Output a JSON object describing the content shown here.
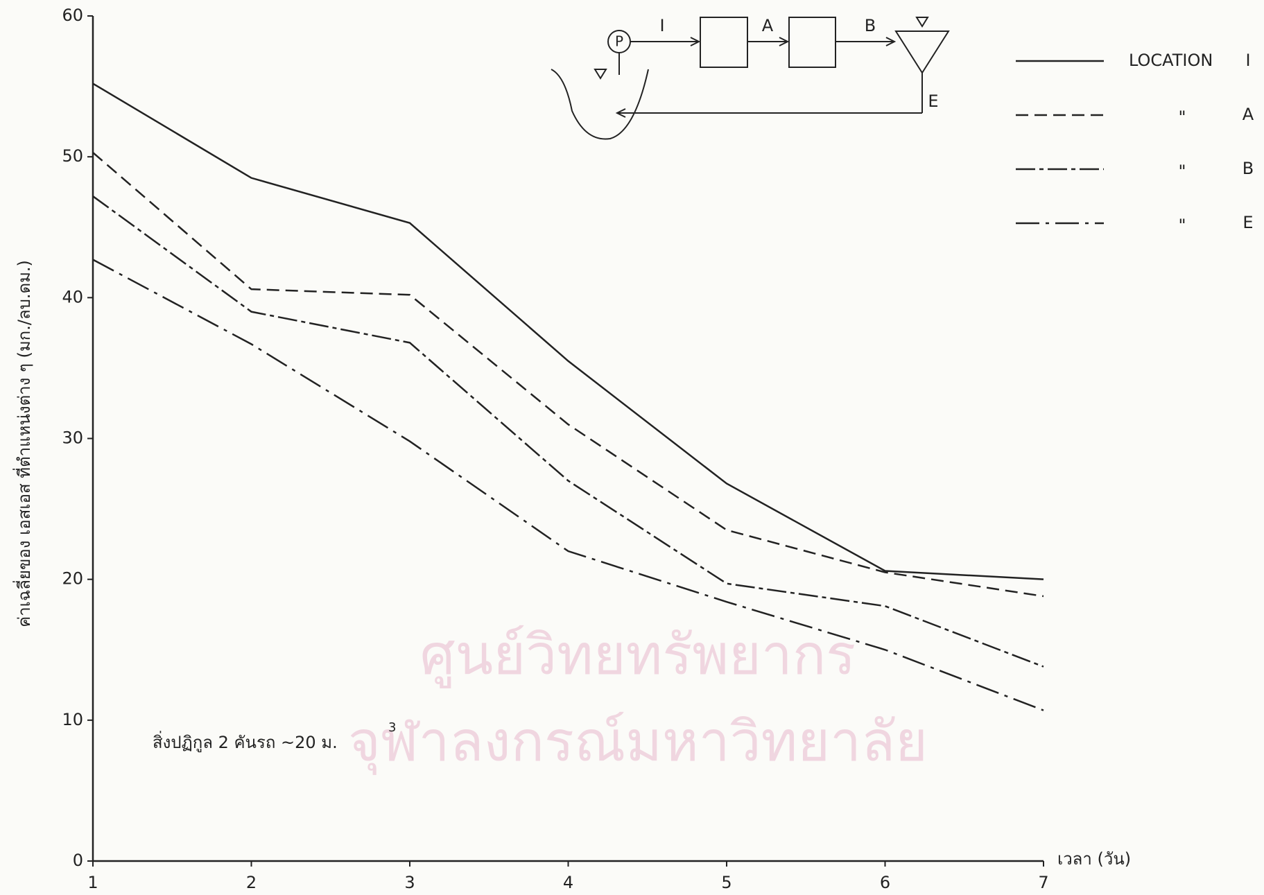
{
  "chart_data": {
    "type": "line",
    "y_label": "ค่าเฉลี่ยของ เอสเอส ที่ตำแหน่งต่าง ๆ (มก./ลบ.ดม.)",
    "x_label": "เวลา (วัน)",
    "annotation": "สิ่งปฏิกูล 2 คันรถ ~20 ม.",
    "annotation_superscript": "3",
    "legend_prefix": "LOCATION",
    "ditto_mark": "\"",
    "diagram_labels": {
      "pump": "P",
      "inflow": "I",
      "a": "A",
      "b": "B",
      "e": "E"
    },
    "watermark": [
      "ศูนย์วิทยทรัพยากร",
      "จุฬาลงกรณ์มหาวิทยาลัย"
    ],
    "x": [
      1,
      2,
      3,
      4,
      5,
      6,
      7
    ],
    "xlim": [
      1,
      7
    ],
    "xticks": [
      1,
      2,
      3,
      4,
      5,
      6,
      7
    ],
    "ylim": [
      0,
      60
    ],
    "yticks": [
      0,
      10,
      20,
      30,
      40,
      50,
      60
    ],
    "series": [
      {
        "name": "I",
        "color": "#222222",
        "dash": "none",
        "values": [
          55.2,
          48.5,
          45.3,
          35.5,
          26.8,
          20.6,
          20.0
        ]
      },
      {
        "name": "A",
        "color": "#222222",
        "dash": "18 9",
        "values": [
          50.3,
          40.6,
          40.2,
          31.0,
          23.5,
          20.5,
          18.8
        ]
      },
      {
        "name": "B",
        "color": "#222222",
        "dash": "28 6 6 6",
        "values": [
          47.2,
          39.0,
          36.8,
          27.0,
          19.7,
          18.1,
          13.8
        ]
      },
      {
        "name": "E",
        "color": "#222222",
        "dash": "34 9 5 9",
        "values": [
          42.7,
          36.7,
          29.8,
          22.0,
          18.4,
          15.0,
          10.7
        ]
      }
    ]
  }
}
